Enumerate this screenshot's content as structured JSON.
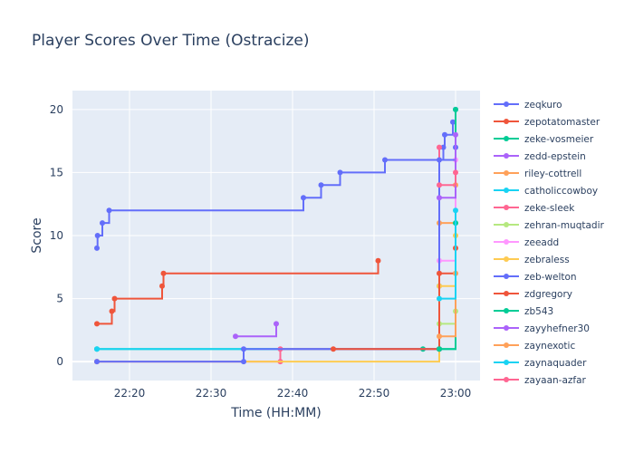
{
  "chart_data": {
    "type": "line",
    "line_shape": "step",
    "title": "Player Scores Over Time (Ostracize)",
    "xlabel": "Time (HH:MM)",
    "ylabel": "Score",
    "xlim": [
      "22:13",
      "23:03"
    ],
    "ylim": [
      -1.5,
      21.5
    ],
    "x_ticks": [
      "22:20",
      "22:30",
      "22:40",
      "22:50",
      "23:00"
    ],
    "y_ticks": [
      0,
      5,
      10,
      15,
      20
    ],
    "grid": true,
    "legend_position": "right",
    "series": [
      {
        "name": "zeqkuro",
        "color": "#636efa",
        "points": [
          [
            "22:16:00",
            9
          ],
          [
            "22:16:05",
            10
          ],
          [
            "22:16:40",
            11
          ],
          [
            "22:17:30",
            12
          ],
          [
            "22:41:20",
            13
          ],
          [
            "22:43:30",
            14
          ],
          [
            "22:45:50",
            15
          ],
          [
            "22:51:20",
            16
          ],
          [
            "22:58:30",
            17
          ],
          [
            "22:58:40",
            18
          ],
          [
            "22:59:40",
            19
          ],
          [
            "23:00:00",
            20
          ]
        ]
      },
      {
        "name": "zepotatomaster",
        "color": "#ef553b",
        "points": [
          [
            "22:16:00",
            3
          ],
          [
            "22:17:50",
            4
          ],
          [
            "22:18:10",
            5
          ],
          [
            "22:24:00",
            6
          ],
          [
            "22:24:10",
            7
          ],
          [
            "22:50:30",
            8
          ]
        ]
      },
      {
        "name": "zeke-vosmeier",
        "color": "#00cc96",
        "points": [
          [
            "22:16:00",
            1
          ],
          [
            "22:56:00",
            1
          ],
          [
            "22:58:00",
            1
          ],
          [
            "23:00:00",
            20
          ]
        ]
      },
      {
        "name": "zedd-epstein",
        "color": "#ab63fa",
        "points": [
          [
            "22:33:00",
            2
          ],
          [
            "22:38:00",
            3
          ]
        ]
      },
      {
        "name": "riley-cottrell",
        "color": "#ffa15a",
        "points": [
          [
            "22:58:00",
            11
          ],
          [
            "23:00:00",
            14
          ]
        ]
      },
      {
        "name": "catholiccowboy",
        "color": "#19d3f3",
        "points": [
          [
            "22:16:00",
            1
          ],
          [
            "22:58:00",
            1
          ],
          [
            "22:58:00",
            6
          ]
        ]
      },
      {
        "name": "zeke-sleek",
        "color": "#ff6692",
        "points": [
          [
            "22:16:00",
            0
          ],
          [
            "22:38:30",
            0
          ],
          [
            "22:38:30",
            1
          ],
          [
            "22:58:00",
            17
          ]
        ]
      },
      {
        "name": "zehran-muqtadir",
        "color": "#b6e880",
        "points": [
          [
            "22:58:00",
            3
          ],
          [
            "23:00:00",
            4
          ]
        ]
      },
      {
        "name": "zeeadd",
        "color": "#ff97ff",
        "points": [
          [
            "22:58:00",
            8
          ],
          [
            "23:00:00",
            16
          ]
        ]
      },
      {
        "name": "zebraless",
        "color": "#fecb52",
        "points": [
          [
            "22:16:00",
            0
          ],
          [
            "22:58:00",
            6
          ],
          [
            "23:00:00",
            10
          ]
        ]
      },
      {
        "name": "zeb-welton",
        "color": "#636efa",
        "points": [
          [
            "22:16:00",
            0
          ],
          [
            "22:34:00",
            0
          ],
          [
            "22:34:00",
            1
          ],
          [
            "22:58:00",
            1
          ],
          [
            "22:58:00",
            16
          ],
          [
            "23:00:00",
            17
          ]
        ]
      },
      {
        "name": "zdgregory",
        "color": "#ef553b",
        "points": [
          [
            "22:45:00",
            1
          ],
          [
            "22:58:00",
            1
          ],
          [
            "22:58:00",
            7
          ],
          [
            "23:00:00",
            9
          ]
        ]
      },
      {
        "name": "zb543",
        "color": "#00cc96",
        "points": [
          [
            "22:58:00",
            1
          ],
          [
            "23:00:00",
            11
          ]
        ]
      },
      {
        "name": "zayyhefner30",
        "color": "#ab63fa",
        "points": [
          [
            "22:58:00",
            13
          ],
          [
            "23:00:00",
            18
          ]
        ]
      },
      {
        "name": "zaynexotic",
        "color": "#ffa15a",
        "points": [
          [
            "22:58:00",
            2
          ],
          [
            "23:00:00",
            7
          ]
        ]
      },
      {
        "name": "zaynaquader",
        "color": "#19d3f3",
        "points": [
          [
            "22:58:00",
            5
          ],
          [
            "23:00:00",
            12
          ]
        ]
      },
      {
        "name": "zayaan-azfar",
        "color": "#ff6692",
        "points": [
          [
            "22:58:00",
            14
          ],
          [
            "23:00:00",
            15
          ]
        ]
      }
    ]
  }
}
